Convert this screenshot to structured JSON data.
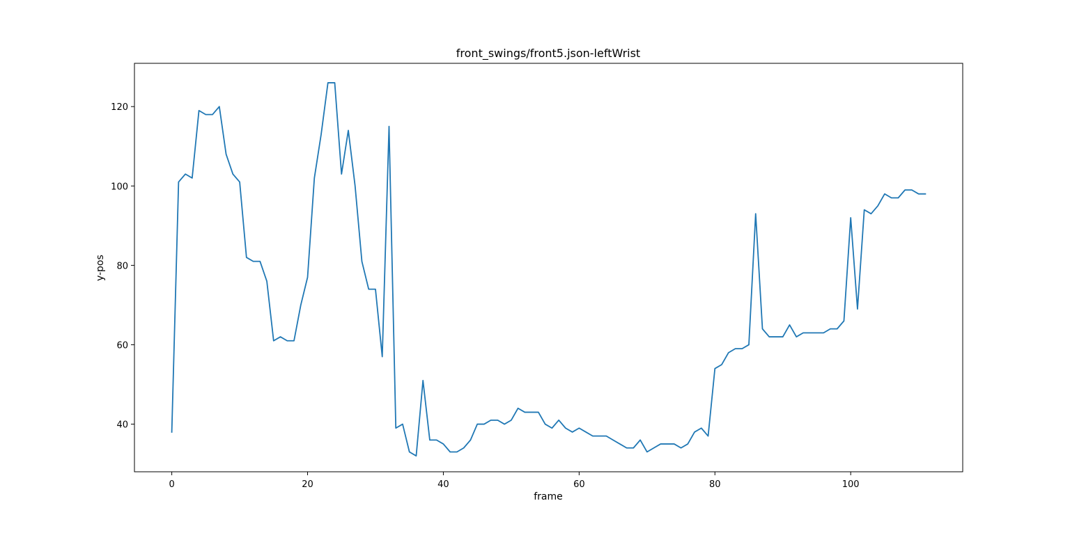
{
  "chart_data": {
    "type": "line",
    "title": "front_swings/front5.json-leftWrist",
    "xlabel": "frame",
    "ylabel": "y-pos",
    "xlim": [
      -5.5,
      116.5
    ],
    "ylim": [
      28.0,
      130.9
    ],
    "xticks": [
      0,
      20,
      40,
      60,
      80,
      100
    ],
    "yticks": [
      40,
      60,
      80,
      100,
      120
    ],
    "grid": false,
    "legend": "none",
    "series": [
      {
        "color": "#1f77b4",
        "x": [
          0,
          1,
          2,
          3,
          4,
          5,
          6,
          7,
          8,
          9,
          10,
          11,
          12,
          13,
          14,
          15,
          16,
          17,
          18,
          19,
          20,
          21,
          22,
          23,
          24,
          25,
          26,
          27,
          28,
          29,
          30,
          31,
          32,
          33,
          34,
          35,
          36,
          37,
          38,
          39,
          40,
          41,
          42,
          43,
          44,
          45,
          46,
          47,
          48,
          49,
          50,
          51,
          52,
          53,
          54,
          55,
          56,
          57,
          58,
          59,
          60,
          61,
          62,
          63,
          64,
          65,
          66,
          67,
          68,
          69,
          70,
          71,
          72,
          73,
          74,
          75,
          76,
          77,
          78,
          79,
          80,
          81,
          82,
          83,
          84,
          85,
          86,
          87,
          88,
          89,
          90,
          91,
          92,
          93,
          94,
          95,
          96,
          97,
          98,
          99,
          100,
          101,
          102,
          103,
          104,
          105,
          106,
          107,
          108,
          109,
          110,
          111
        ],
        "values": [
          38,
          101,
          103,
          102,
          119,
          118,
          118,
          120,
          108,
          103,
          101,
          82,
          81,
          81,
          76,
          61,
          62,
          61,
          61,
          70,
          77,
          102,
          113,
          126,
          126,
          103,
          114,
          100,
          81,
          74,
          74,
          57,
          115,
          39,
          40,
          33,
          32,
          51,
          36,
          36,
          35,
          33,
          33,
          34,
          36,
          40,
          40,
          41,
          41,
          40,
          41,
          44,
          43,
          43,
          43,
          40,
          39,
          41,
          39,
          38,
          39,
          38,
          37,
          37,
          37,
          36,
          35,
          34,
          34,
          36,
          33,
          34,
          35,
          35,
          35,
          34,
          35,
          38,
          39,
          37,
          54,
          55,
          58,
          59,
          59,
          60,
          93,
          64,
          62,
          62,
          62,
          65,
          62,
          63,
          63,
          63,
          63,
          64,
          64,
          66,
          92,
          69,
          94,
          93,
          95,
          98,
          97,
          97,
          99,
          99,
          98,
          98
        ]
      }
    ]
  }
}
